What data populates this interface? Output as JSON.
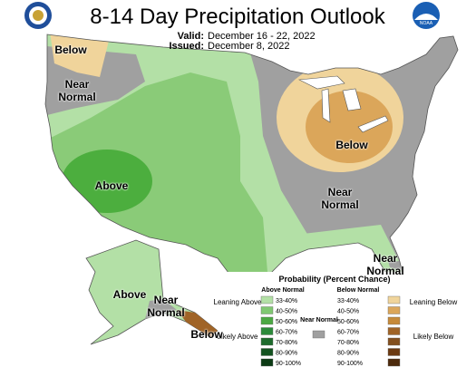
{
  "header": {
    "title": "8-14 Day Precipitation Outlook",
    "valid_label": "Valid:",
    "valid": "December 16 - 22, 2022",
    "issued_label": "Issued:",
    "issued": "December 8, 2022",
    "logo_text": "NOAA"
  },
  "map_labels": [
    "Below",
    "Near Normal",
    "Above",
    "Below",
    "Near Normal",
    "Near Normal",
    "Above",
    "Near Normal",
    "Below"
  ],
  "legend": {
    "title": "Probability (Percent Chance)",
    "above_heading": "Above Normal",
    "below_heading": "Below Normal",
    "near_label": "Near Normal",
    "near_color": "#a0a0a0",
    "leaning_above": "Leaning Above",
    "likely_above": "Likely Above",
    "leaning_below": "Leaning Below",
    "likely_below": "Likely Below",
    "rows": [
      {
        "range": "33-40%",
        "above_color": "#b3e0a6",
        "below_color": "#f0d49b"
      },
      {
        "range": "40-50%",
        "above_color": "#80c872",
        "below_color": "#dba65a"
      },
      {
        "range": "50-60%",
        "above_color": "#4ba843",
        "below_color": "#c68a3a"
      },
      {
        "range": "60-70%",
        "above_color": "#2b8a3a",
        "below_color": "#a06427"
      },
      {
        "range": "70-80%",
        "above_color": "#1d6b2c",
        "below_color": "#83501f"
      },
      {
        "range": "80-90%",
        "above_color": "#135320",
        "below_color": "#6b3a12"
      },
      {
        "range": "90-100%",
        "above_color": "#0b3a14",
        "below_color": "#4d2a0c"
      }
    ]
  }
}
